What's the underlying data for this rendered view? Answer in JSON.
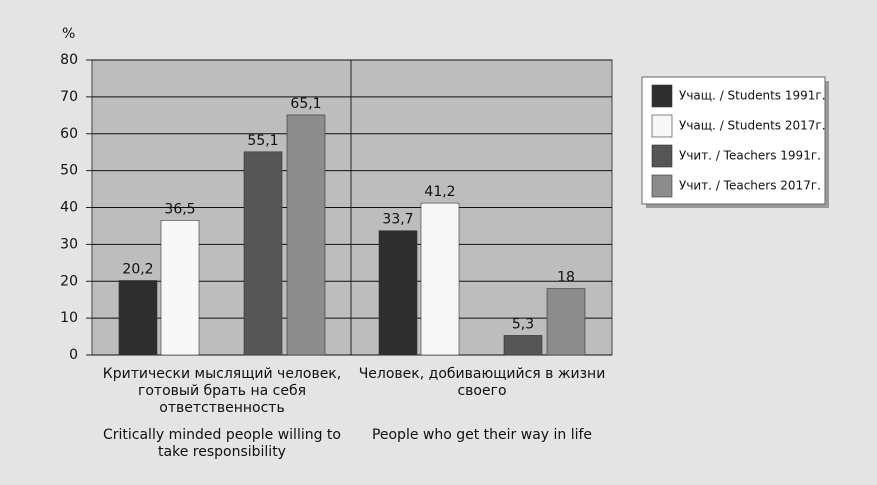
{
  "chart_data": {
    "type": "bar",
    "y_label": "%",
    "categories": [
      "Критически мыслящий человек, готовый брать на себя ответственность",
      "Человек, добивающийся в жизни своего"
    ],
    "categories_en": [
      "Critically minded people willing to take responsibility",
      "People who get their way in life"
    ],
    "series": [
      {
        "name": "Учащ. / Students 1991г.",
        "color": "#2e2e2e",
        "values": [
          20.2,
          33.7
        ],
        "value_labels": [
          "20,2",
          "33,7"
        ]
      },
      {
        "name": "Учащ. / Students 2017г.",
        "color": "#f7f7f7",
        "values": [
          36.5,
          41.2
        ],
        "value_labels": [
          "36,5",
          "41,2"
        ]
      },
      {
        "name": "Учит. / Teachers 1991г.",
        "color": "#565656",
        "values": [
          55.1,
          5.3
        ],
        "value_labels": [
          "55,1",
          "5,3"
        ]
      },
      {
        "name": "Учит. / Teachers 2017г.",
        "color": "#8c8c8c",
        "values": [
          65.1,
          18
        ],
        "value_labels": [
          "65,1",
          "18"
        ]
      }
    ],
    "ylim": [
      0,
      80
    ],
    "yticks": [
      0,
      10,
      20,
      30,
      40,
      50,
      60,
      70,
      80
    ],
    "grid": true,
    "legend": "right"
  }
}
